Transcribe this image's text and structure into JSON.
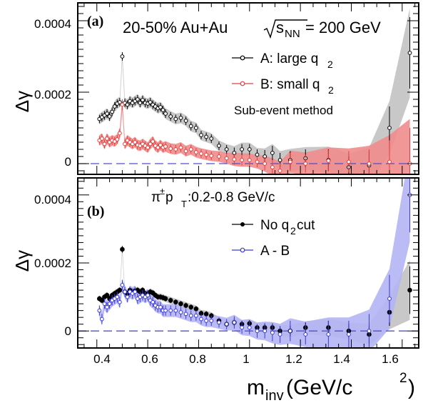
{
  "x_axis_label": "m",
  "x_axis_label_sub": "inv",
  "x_axis_label_unit": " (GeV/c",
  "x_axis_label_sup": "2",
  "x_axis_label_close": ")",
  "x_ticks": [
    "0.4",
    "0.6",
    "0.8",
    "1",
    "1.2",
    "1.4",
    "1.6"
  ],
  "chart_data": [
    {
      "type": "scatter",
      "panel_tag": "(a)",
      "title": {
        "main": "20-50% Au+Au ",
        "sqrt_s": "s",
        "sqrt_sub": "NN",
        "energy": " = 200 GeV"
      },
      "ylabel": "Δγ",
      "y_ticks": [
        "0.0004",
        "0.0002",
        "0"
      ],
      "xlim": [
        0.325,
        1.665
      ],
      "ylim": [
        -3e-05,
        0.00045
      ],
      "grid": false,
      "legend_placement": "top-right",
      "annotation": "Sub-event method",
      "series": [
        {
          "name": "A: large q",
          "name_sub": "2",
          "marker": "open-circle",
          "color": "#000000",
          "band_color": "#c8c8c8",
          "x": [
            0.41,
            0.42,
            0.43,
            0.44,
            0.45,
            0.46,
            0.47,
            0.48,
            0.49,
            0.5,
            0.51,
            0.52,
            0.53,
            0.54,
            0.55,
            0.56,
            0.57,
            0.58,
            0.59,
            0.6,
            0.61,
            0.62,
            0.63,
            0.64,
            0.65,
            0.66,
            0.67,
            0.69,
            0.71,
            0.73,
            0.75,
            0.77,
            0.79,
            0.81,
            0.83,
            0.85,
            0.88,
            0.91,
            0.94,
            0.97,
            1.0,
            1.03,
            1.06,
            1.09,
            1.12,
            1.16,
            1.22,
            1.31,
            1.39,
            1.47,
            1.55,
            1.63
          ],
          "y": [
            0.000125,
            0.00013,
            0.000135,
            0.00014,
            0.000132,
            0.000145,
            0.00016,
            0.000168,
            0.000172,
            0.0003,
            0.00017,
            0.000165,
            0.000175,
            0.00017,
            0.000175,
            0.00018,
            0.00017,
            0.000178,
            0.00017,
            0.000168,
            0.000172,
            0.000165,
            0.00016,
            0.000155,
            0.000158,
            0.00015,
            0.00014,
            0.000132,
            0.000125,
            0.000128,
            0.00012,
            0.000105,
            0.0001,
            8e-05,
            7.5e-05,
            7e-05,
            5e-05,
            4e-05,
            3e-05,
            4e-05,
            4e-05,
            2.5e-05,
            2e-05,
            3e-05,
            1e-05,
            1e-05,
            1.5e-05,
            1e-05,
            -1e-05,
            -5e-06,
            0.0001,
            0.00031
          ],
          "yerr": [
            1.2e-05,
            1.2e-05,
            1.2e-05,
            1.2e-05,
            1.2e-05,
            1.2e-05,
            1.2e-05,
            1.2e-05,
            1.2e-05,
            1.2e-05,
            1.2e-05,
            1.2e-05,
            1.2e-05,
            1.2e-05,
            1.2e-05,
            1.2e-05,
            1.2e-05,
            1.2e-05,
            1.2e-05,
            1.2e-05,
            1.2e-05,
            1.2e-05,
            1.2e-05,
            1.2e-05,
            1.2e-05,
            1.2e-05,
            1.2e-05,
            1.2e-05,
            1.2e-05,
            1.2e-05,
            1.2e-05,
            1.2e-05,
            1.2e-05,
            1.2e-05,
            1.2e-05,
            1.2e-05,
            1.2e-05,
            1.2e-05,
            1.5e-05,
            1.5e-05,
            1.5e-05,
            1.5e-05,
            1.8e-05,
            2e-05,
            2e-05,
            2.5e-05,
            2.5e-05,
            3e-05,
            3e-05,
            4e-05,
            6e-05,
            0.0001
          ]
        },
        {
          "name": "B: small q",
          "name_sub": "2",
          "marker": "open-circle",
          "color": "#e04040",
          "band_color": "#f08c8c",
          "x": [
            0.41,
            0.42,
            0.43,
            0.44,
            0.45,
            0.46,
            0.47,
            0.48,
            0.49,
            0.5,
            0.51,
            0.52,
            0.53,
            0.54,
            0.55,
            0.56,
            0.57,
            0.58,
            0.59,
            0.6,
            0.61,
            0.62,
            0.63,
            0.64,
            0.65,
            0.66,
            0.67,
            0.69,
            0.71,
            0.73,
            0.75,
            0.77,
            0.79,
            0.81,
            0.83,
            0.85,
            0.88,
            0.91,
            0.94,
            0.97,
            1.0,
            1.03,
            1.06,
            1.09,
            1.12,
            1.16,
            1.22,
            1.31,
            1.39,
            1.47,
            1.55,
            1.63
          ],
          "y": [
            6.5e-05,
            7e-05,
            5.5e-05,
            7e-05,
            6e-05,
            6.5e-05,
            6.2e-05,
            6.8e-05,
            8.5e-05,
            0.000165,
            5.5e-05,
            6.5e-05,
            6e-05,
            5.5e-05,
            6e-05,
            5.2e-05,
            5e-05,
            5.5e-05,
            5e-05,
            4.5e-05,
            5.5e-05,
            6.2e-05,
            5e-05,
            4.5e-05,
            5.2e-05,
            4.5e-05,
            4.8e-05,
            4.2e-05,
            4e-05,
            4.5e-05,
            3.5e-05,
            4e-05,
            3.2e-05,
            2.8e-05,
            2.5e-05,
            2.2e-05,
            2e-05,
            1.5e-05,
            1.2e-05,
            1e-05,
            1e-05,
            5e-06,
            0.0,
            -1e-05,
            -2e-05,
            5e-06,
            0.0,
            8e-06,
            5e-06,
            0.0,
            5e-06,
            0.0
          ],
          "yerr": [
            1.2e-05,
            1.2e-05,
            1.2e-05,
            1.2e-05,
            1.2e-05,
            1.2e-05,
            1.2e-05,
            1.2e-05,
            1.2e-05,
            1.5e-05,
            1.2e-05,
            1.2e-05,
            1.2e-05,
            1.2e-05,
            1.2e-05,
            1.2e-05,
            1.2e-05,
            1.2e-05,
            1.2e-05,
            1.2e-05,
            1.2e-05,
            1.2e-05,
            1.2e-05,
            1.2e-05,
            1.2e-05,
            1.2e-05,
            1.2e-05,
            1.2e-05,
            1.2e-05,
            1.2e-05,
            1.2e-05,
            1.2e-05,
            1.2e-05,
            1.2e-05,
            1.2e-05,
            1.2e-05,
            1.2e-05,
            1.2e-05,
            1.5e-05,
            1.5e-05,
            1.5e-05,
            1.5e-05,
            1.8e-05,
            2e-05,
            2e-05,
            2.5e-05,
            2.5e-05,
            3e-05,
            3e-05,
            4e-05,
            6e-05,
            0.0001
          ]
        }
      ]
    },
    {
      "type": "scatter",
      "panel_tag": "(b)",
      "title": {
        "main": "π",
        "main_sup": "±",
        "pt": " p",
        "pt_sub": "T",
        "range": ":0.2-0.8 GeV/c"
      },
      "ylabel": "Δγ",
      "y_ticks": [
        "0.0004",
        "0.0002",
        "0"
      ],
      "xlim": [
        0.325,
        1.665
      ],
      "ylim": [
        -5e-05,
        0.00045
      ],
      "grid": false,
      "legend_placement": "top-right",
      "series": [
        {
          "name": "No q",
          "name_sub": "2",
          "name_tail": " cut",
          "marker": "filled-circle",
          "color": "#000000",
          "band_color": "#c8c8c8",
          "x": [
            0.41,
            0.42,
            0.43,
            0.44,
            0.45,
            0.46,
            0.47,
            0.48,
            0.49,
            0.5,
            0.51,
            0.52,
            0.53,
            0.54,
            0.55,
            0.56,
            0.57,
            0.58,
            0.59,
            0.6,
            0.61,
            0.62,
            0.63,
            0.64,
            0.65,
            0.66,
            0.67,
            0.69,
            0.71,
            0.73,
            0.75,
            0.77,
            0.79,
            0.81,
            0.83,
            0.85,
            0.88,
            0.91,
            0.94,
            0.97,
            1.0,
            1.03,
            1.06,
            1.09,
            1.12,
            1.16,
            1.22,
            1.31,
            1.39,
            1.47,
            1.55,
            1.63
          ],
          "y": [
            9.5e-05,
            9e-05,
            0.0001,
            0.000105,
            9.5e-05,
            0.000105,
            0.00011,
            0.000115,
            0.00012,
            0.00024,
            0.000115,
            0.00011,
            0.00012,
            0.000112,
            0.000118,
            0.00012,
            0.000115,
            0.00012,
            0.00011,
            0.00011,
            0.000115,
            0.000112,
            0.000105,
            0.0001,
            0.0001,
            9.8e-05,
            9.5e-05,
            9e-05,
            8.5e-05,
            8e-05,
            7.5e-05,
            7e-05,
            6.5e-05,
            5.2e-05,
            5e-05,
            4.5e-05,
            3e-05,
            2e-05,
            2.5e-05,
            2e-05,
            2.2e-05,
            1e-05,
            1e-05,
            1e-05,
            0.0,
            0.0,
            1e-05,
            1e-05,
            0.0,
            -1e-05,
            5.5e-05,
            0.00012
          ],
          "yerr": [
            8e-06,
            8e-06,
            8e-06,
            8e-06,
            8e-06,
            8e-06,
            8e-06,
            8e-06,
            8e-06,
            1e-05,
            8e-06,
            8e-06,
            8e-06,
            8e-06,
            8e-06,
            8e-06,
            8e-06,
            8e-06,
            8e-06,
            8e-06,
            8e-06,
            8e-06,
            8e-06,
            8e-06,
            8e-06,
            8e-06,
            8e-06,
            8e-06,
            8e-06,
            8e-06,
            8e-06,
            8e-06,
            8e-06,
            8e-06,
            8e-06,
            8e-06,
            8e-06,
            8e-06,
            1e-05,
            1e-05,
            1e-05,
            1e-05,
            1.2e-05,
            1.2e-05,
            1.2e-05,
            1.5e-05,
            1.5e-05,
            2e-05,
            2e-05,
            2.5e-05,
            4e-05,
            7e-05
          ]
        },
        {
          "name": "A - B",
          "marker": "open-circle",
          "color": "#3a3ad8",
          "band_color": "#b4b4f4",
          "x": [
            0.41,
            0.42,
            0.43,
            0.44,
            0.45,
            0.46,
            0.47,
            0.48,
            0.49,
            0.5,
            0.51,
            0.52,
            0.53,
            0.54,
            0.55,
            0.56,
            0.57,
            0.58,
            0.59,
            0.6,
            0.61,
            0.62,
            0.63,
            0.64,
            0.65,
            0.66,
            0.67,
            0.69,
            0.71,
            0.73,
            0.75,
            0.77,
            0.79,
            0.81,
            0.83,
            0.85,
            0.88,
            0.91,
            0.94,
            0.97,
            1.0,
            1.03,
            1.06,
            1.09,
            1.12,
            1.16,
            1.22,
            1.31,
            1.39,
            1.47,
            1.55,
            1.63
          ],
          "y": [
            6e-05,
            3.5e-05,
            8e-05,
            7e-05,
            8e-05,
            9e-05,
            9.5e-05,
            0.0001,
            8.5e-05,
            0.000135,
            0.000115,
            0.0001,
            0.000115,
            0.00011,
            0.000115,
            9.5e-05,
            0.0001,
            0.000105,
            0.0001,
            0.000105,
            9e-05,
            8.5e-05,
            7.5e-05,
            7e-05,
            7e-05,
            6e-05,
            6e-05,
            6e-05,
            6e-05,
            5.5e-05,
            5e-05,
            4.5e-05,
            4.5e-05,
            3.5e-05,
            3e-05,
            3e-05,
            2.5e-05,
            2e-05,
            2.5e-05,
            1e-05,
            1e-05,
            0.0,
            0.0,
            -5e-06,
            -1e-05,
            0.0,
            -1e-05,
            -1e-05,
            -1e-05,
            0.0,
            9.5e-05,
            0.0004
          ],
          "yerr": [
            1.5e-05,
            1.5e-05,
            1.5e-05,
            1.5e-05,
            1.5e-05,
            1.5e-05,
            1.5e-05,
            1.5e-05,
            1.5e-05,
            1.5e-05,
            1.5e-05,
            1.5e-05,
            1.5e-05,
            1.5e-05,
            1.5e-05,
            1.5e-05,
            1.5e-05,
            1.5e-05,
            1.5e-05,
            1.5e-05,
            1.5e-05,
            1.5e-05,
            1.5e-05,
            1.5e-05,
            1.5e-05,
            1.5e-05,
            1.5e-05,
            1.5e-05,
            1.5e-05,
            1.5e-05,
            1.5e-05,
            1.5e-05,
            1.5e-05,
            1.5e-05,
            1.5e-05,
            1.5e-05,
            1.5e-05,
            1.5e-05,
            1.8e-05,
            1.8e-05,
            2e-05,
            2e-05,
            2.2e-05,
            2.5e-05,
            2.5e-05,
            3e-05,
            3e-05,
            4e-05,
            4e-05,
            5e-05,
            7e-05,
            0.00011
          ]
        }
      ]
    }
  ]
}
